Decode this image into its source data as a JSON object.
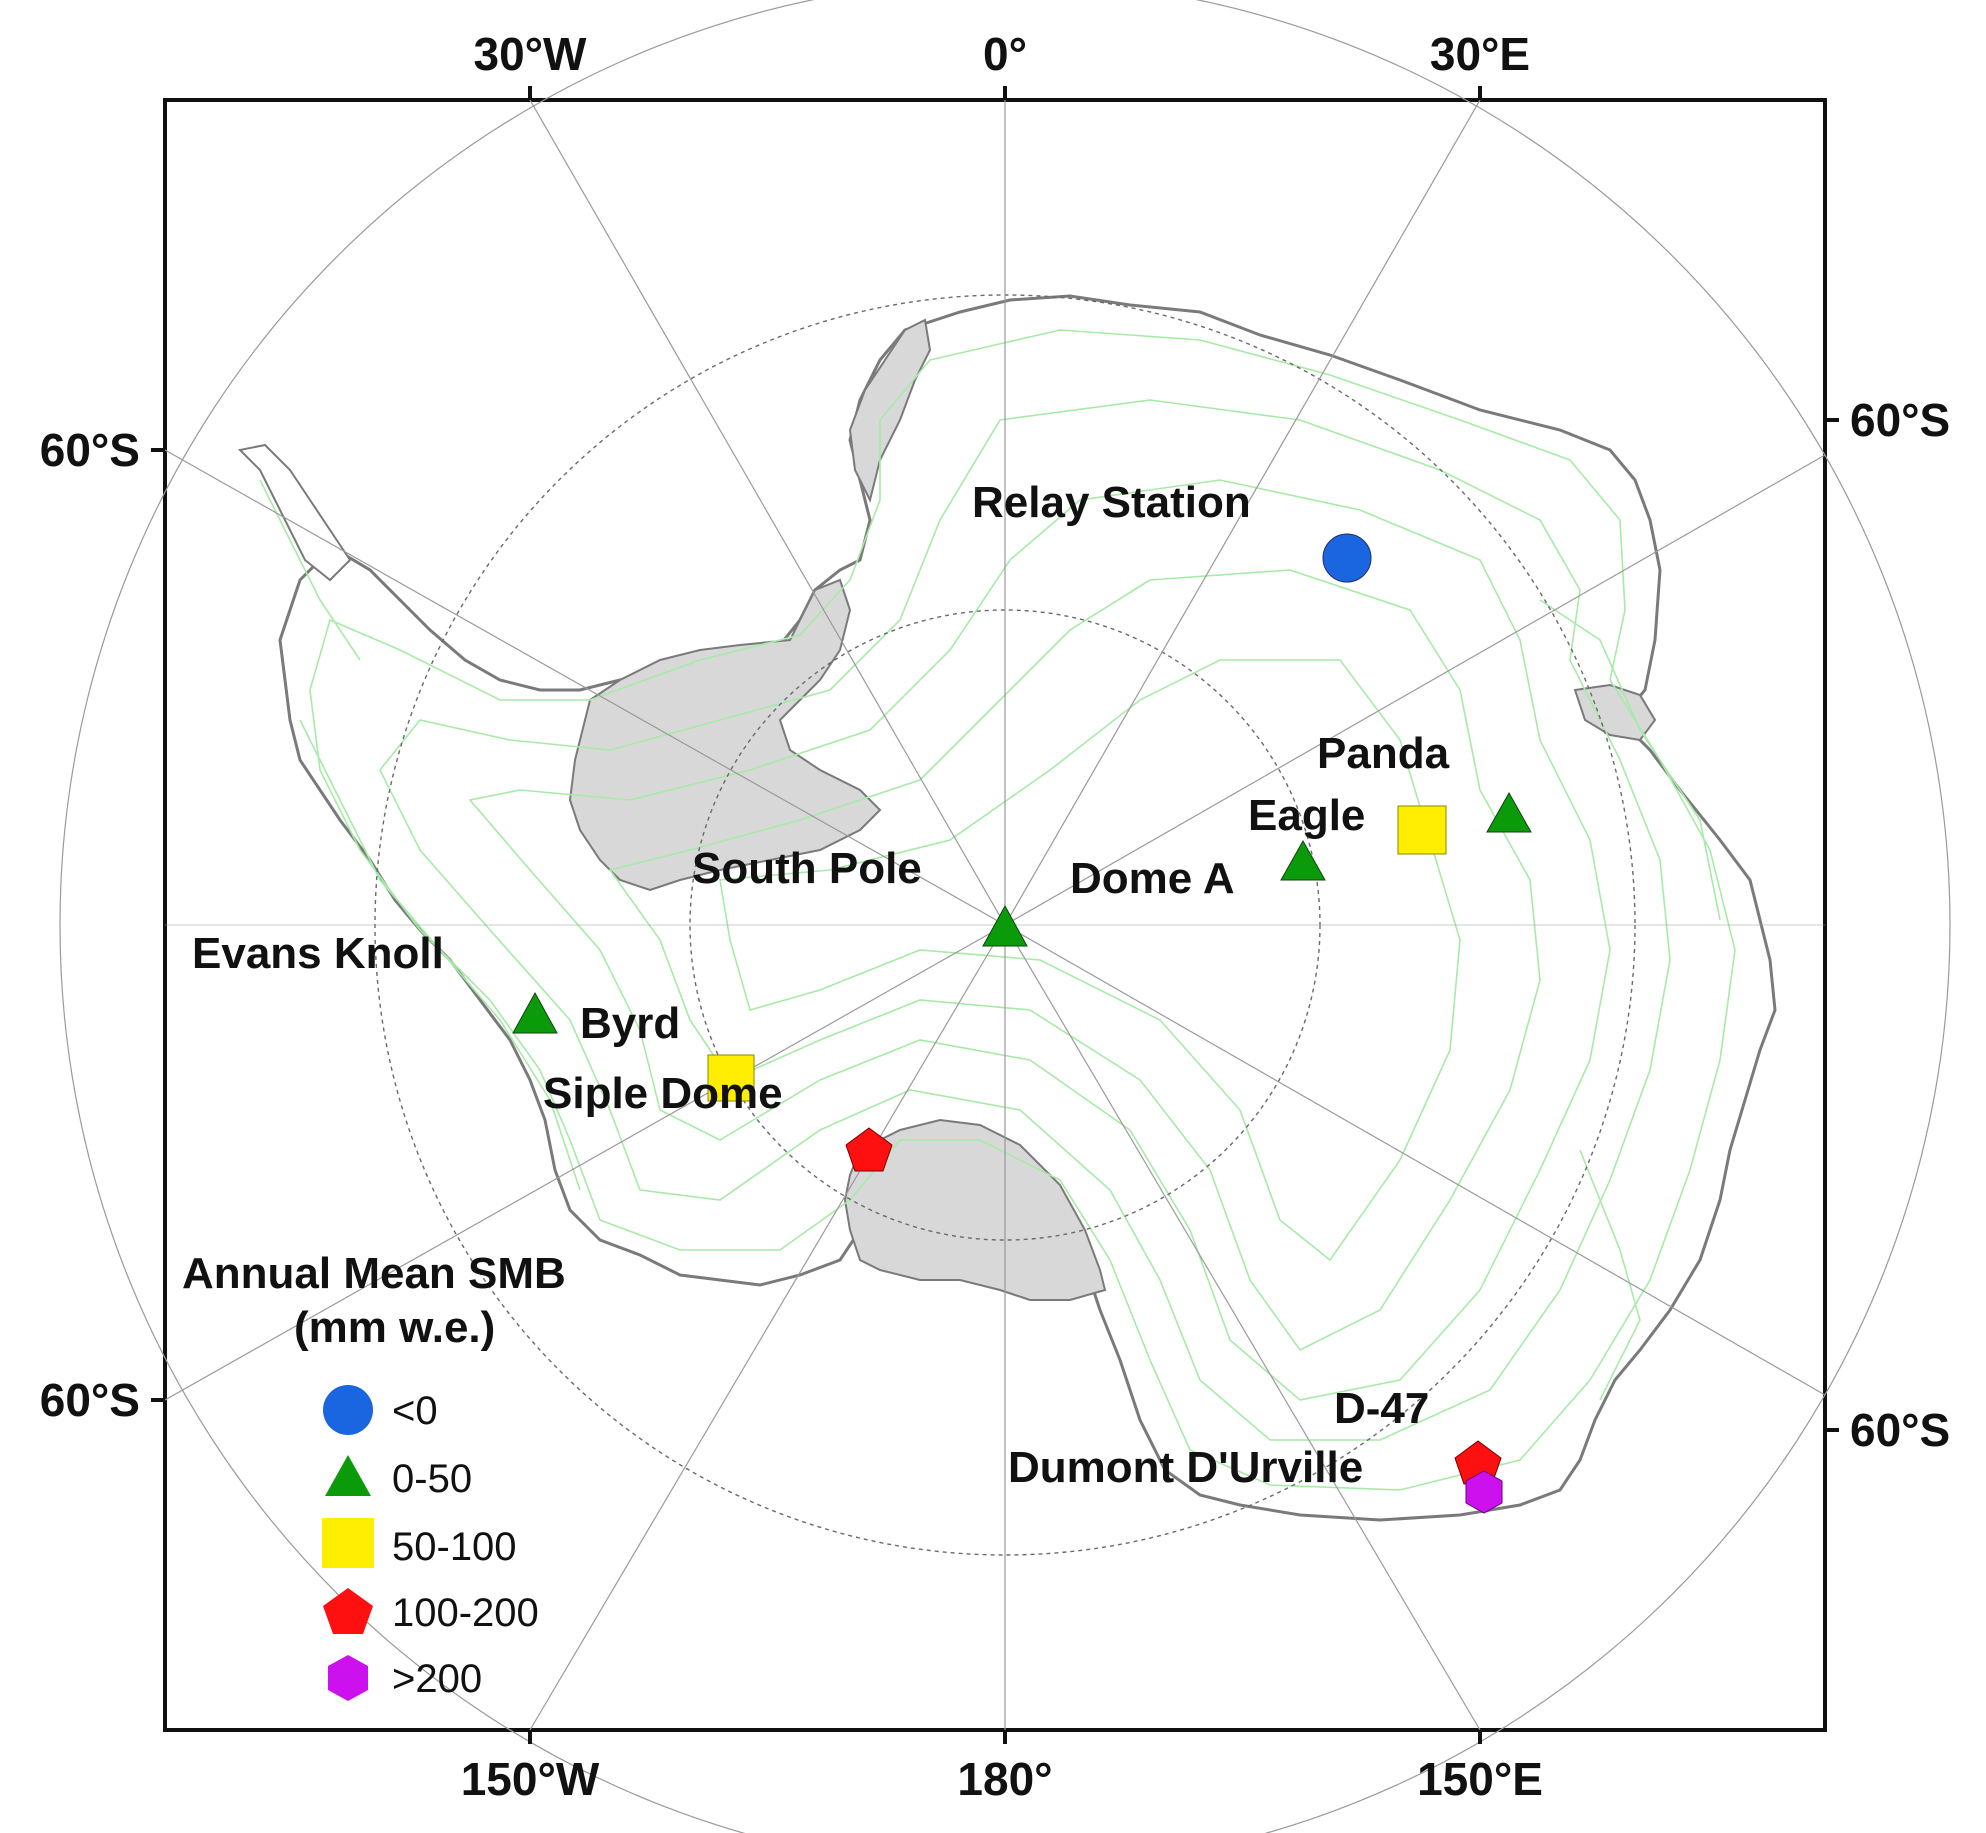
{
  "colors": {
    "lt0": "#1a66e0",
    "c0_50": "#0a9a0a",
    "c50_100": "#ffee00",
    "c100_200": "#ff1010",
    "gt200": "#cc11ee",
    "ice_shelf": "#d8d8d8",
    "contour": "#a7eaa7"
  },
  "axes": {
    "top": [
      "30°W",
      "0°",
      "30°E"
    ],
    "bottom": [
      "150°W",
      "180°",
      "150°E"
    ],
    "left": [
      "60°S",
      "60°S"
    ],
    "right": [
      "60°S",
      "60°S"
    ]
  },
  "legend": {
    "title_line1": "Annual Mean SMB",
    "title_line2": "(mm w.e.)",
    "items": [
      {
        "label": "<0",
        "icon": "circle-icon",
        "color_key": "lt0"
      },
      {
        "label": "0-50",
        "icon": "triangle-icon",
        "color_key": "c0_50"
      },
      {
        "label": "50-100",
        "icon": "square-icon",
        "color_key": "c50_100"
      },
      {
        "label": "100-200",
        "icon": "pentagon-icon",
        "color_key": "c100_200"
      },
      {
        "label": ">200",
        "icon": "hexagon-icon",
        "color_key": "gt200"
      }
    ]
  },
  "stations": [
    {
      "name": "Relay Station",
      "symbol": "circle"
    },
    {
      "name": "Panda",
      "symbol": "triangle"
    },
    {
      "name": "Eagle",
      "symbol": "square"
    },
    {
      "name": "Dome A",
      "symbol": "triangle"
    },
    {
      "name": "South Pole",
      "symbol": "triangle"
    },
    {
      "name": "Evans Knoll",
      "symbol": "triangle"
    },
    {
      "name": "Byrd",
      "symbol": "square"
    },
    {
      "name": "Siple Dome",
      "symbol": "pentagon"
    },
    {
      "name": "D-47",
      "symbol": "pentagon"
    },
    {
      "name": "Dumont D'Urville",
      "symbol": "hexagon"
    }
  ]
}
